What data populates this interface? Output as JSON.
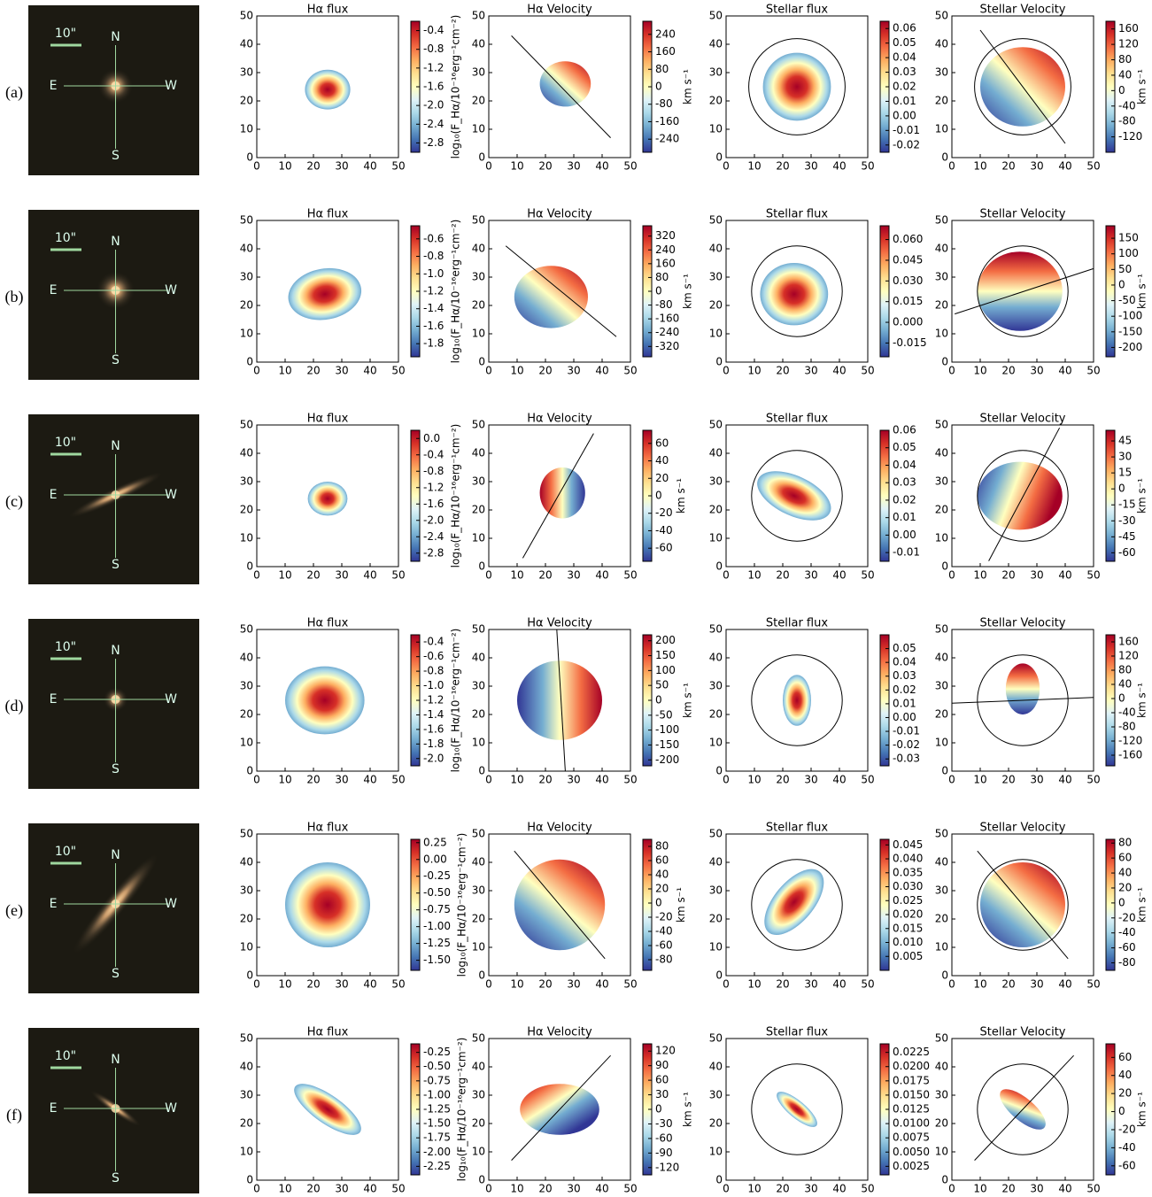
{
  "titles": {
    "ha_flux": "Hα flux",
    "ha_velocity": "Hα Velocity",
    "stellar_flux": "Stellar flux",
    "stellar_velocity": "Stellar Velocity"
  },
  "colorbar_labels": {
    "flux": "log₁₀(F_Hα/10⁻¹⁶erg⁻¹cm⁻²)",
    "velocity": "km s⁻¹"
  },
  "compass": {
    "scale": "10\"",
    "n": "N",
    "e": "E",
    "w": "W",
    "s": "S"
  },
  "axes": {
    "xlim": [
      0,
      50
    ],
    "ylim": [
      0,
      50
    ],
    "xticks": [
      0,
      10,
      20,
      30,
      40,
      50
    ],
    "yticks": [
      0,
      10,
      20,
      30,
      40,
      50
    ]
  },
  "rows": [
    {
      "label": "(a)",
      "ha_flux": {
        "clim": [
          -3.0,
          -0.2
        ],
        "ticks": [
          -0.4,
          -0.8,
          -1.2,
          -1.6,
          {
            "value": -2,
            "label": "-2.0"
          },
          -2.4,
          -2.8
        ]
      },
      "ha_velocity": {
        "clim": [
          -300,
          300
        ],
        "ticks": [
          240,
          160,
          80,
          0,
          -80,
          -160,
          -240
        ]
      },
      "stellar_flux": {
        "clim": [
          -0.025,
          0.065
        ],
        "ticks": [
          0.06,
          0.05,
          0.04,
          0.03,
          0.02,
          0.01,
          {
            "value": 0,
            "label": "0.00"
          },
          -0.01,
          -0.02
        ]
      },
      "stellar_velocity": {
        "clim": [
          -160,
          180
        ],
        "ticks": [
          160,
          120,
          80,
          40,
          0,
          -40,
          -80,
          -120
        ]
      }
    },
    {
      "label": "(b)",
      "ha_flux": {
        "clim": [
          -1.95,
          -0.45
        ],
        "ticks": [
          -0.6,
          -0.8,
          {
            "value": -1,
            "label": "-1.0"
          },
          -1.2,
          -1.4,
          -1.6,
          -1.8
        ]
      },
      "ha_velocity": {
        "clim": [
          -380,
          380
        ],
        "ticks": [
          320,
          240,
          160,
          80,
          0,
          -80,
          -160,
          -240,
          -320
        ]
      },
      "stellar_flux": {
        "clim": [
          -0.025,
          0.07
        ],
        "ticks": [
          {
            "value": 0.06,
            "label": "0.060"
          },
          0.045,
          {
            "value": 0.03,
            "label": "0.030"
          },
          0.015,
          {
            "value": 0,
            "label": "0.000"
          },
          -0.015
        ]
      },
      "stellar_velocity": {
        "clim": [
          -230,
          190
        ],
        "ticks": [
          150,
          100,
          50,
          0,
          -50,
          -100,
          -150,
          -200
        ]
      }
    },
    {
      "label": "(c)",
      "ha_flux": {
        "clim": [
          -3.0,
          0.2
        ],
        "ticks": [
          {
            "value": 0,
            "label": "0.0"
          },
          -0.4,
          -0.8,
          -1.2,
          -1.6,
          {
            "value": -2,
            "label": "-2.0"
          },
          -2.4,
          -2.8
        ]
      },
      "ha_velocity": {
        "clim": [
          -75,
          75
        ],
        "ticks": [
          60,
          40,
          20,
          0,
          -20,
          -40,
          -60
        ]
      },
      "stellar_flux": {
        "clim": [
          -0.015,
          0.06
        ],
        "ticks": [
          0.06,
          0.05,
          0.04,
          0.03,
          0.02,
          0.01,
          {
            "value": 0,
            "label": "0.00"
          },
          -0.01
        ]
      },
      "stellar_velocity": {
        "clim": [
          -68,
          55
        ],
        "ticks": [
          45,
          30,
          15,
          0,
          -15,
          -30,
          -45,
          -60
        ]
      }
    },
    {
      "label": "(d)",
      "ha_flux": {
        "clim": [
          -2.1,
          -0.3
        ],
        "ticks": [
          -0.4,
          -0.6,
          -0.8,
          {
            "value": -1,
            "label": "-1.0"
          },
          -1.2,
          -1.4,
          -1.6,
          -1.8,
          {
            "value": -2,
            "label": "-2.0"
          }
        ]
      },
      "ha_velocity": {
        "clim": [
          -220,
          220
        ],
        "ticks": [
          200,
          150,
          100,
          50,
          0,
          -50,
          -100,
          -150,
          -200
        ]
      },
      "stellar_flux": {
        "clim": [
          -0.035,
          0.06
        ],
        "ticks": [
          0.05,
          0.04,
          0.03,
          0.02,
          0.01,
          {
            "value": 0,
            "label": "0.00"
          },
          -0.01,
          -0.02,
          -0.03
        ]
      },
      "stellar_velocity": {
        "clim": [
          -190,
          180
        ],
        "ticks": [
          160,
          120,
          80,
          40,
          0,
          -40,
          -80,
          -120,
          -160
        ]
      }
    },
    {
      "label": "(e)",
      "ha_flux": {
        "clim": [
          -1.65,
          0.3
        ],
        "ticks": [
          0.25,
          {
            "value": 0,
            "label": "0.00"
          },
          -0.25,
          {
            "value": -0.5,
            "label": "-0.50"
          },
          -0.75,
          {
            "value": -1,
            "label": "-1.00"
          },
          -1.25,
          {
            "value": -1.5,
            "label": "-1.50"
          }
        ]
      },
      "ha_velocity": {
        "clim": [
          -95,
          90
        ],
        "ticks": [
          80,
          60,
          40,
          20,
          0,
          -20,
          -40,
          -60,
          -80
        ]
      },
      "stellar_flux": {
        "clim": [
          0.0,
          0.047
        ],
        "ticks": [
          0.045,
          {
            "value": 0.04,
            "label": "0.040"
          },
          0.035,
          {
            "value": 0.03,
            "label": "0.030"
          },
          0.025,
          {
            "value": 0.02,
            "label": "0.020"
          },
          0.015,
          {
            "value": 0.01,
            "label": "0.010"
          },
          0.005
        ]
      },
      "stellar_velocity": {
        "clim": [
          -90,
          85
        ],
        "ticks": [
          80,
          60,
          40,
          20,
          0,
          -20,
          -40,
          -60,
          -80
        ]
      }
    },
    {
      "label": "(f)",
      "ha_flux": {
        "clim": [
          -2.4,
          -0.1
        ],
        "ticks": [
          -0.25,
          {
            "value": -0.5,
            "label": "-0.50"
          },
          -0.75,
          {
            "value": -1,
            "label": "-1.00"
          },
          -1.25,
          {
            "value": -1.5,
            "label": "-1.50"
          },
          -1.75,
          {
            "value": -2,
            "label": "-2.00"
          },
          -2.25
        ]
      },
      "ha_velocity": {
        "clim": [
          -135,
          135
        ],
        "ticks": [
          120,
          90,
          60,
          30,
          0,
          -30,
          -60,
          -90,
          -120
        ]
      },
      "stellar_flux": {
        "clim": [
          0.001,
          0.024
        ],
        "ticks": [
          0.0225,
          {
            "value": 0.02,
            "label": "0.0200"
          },
          0.0175,
          {
            "value": 0.015,
            "label": "0.0150"
          },
          0.0125,
          {
            "value": 0.01,
            "label": "0.0100"
          },
          0.0075,
          {
            "value": 0.005,
            "label": "0.0050"
          },
          0.0025
        ]
      },
      "stellar_velocity": {
        "clim": [
          -70,
          75
        ],
        "ticks": [
          60,
          40,
          20,
          0,
          -20,
          -40,
          -60
        ]
      }
    }
  ]
}
